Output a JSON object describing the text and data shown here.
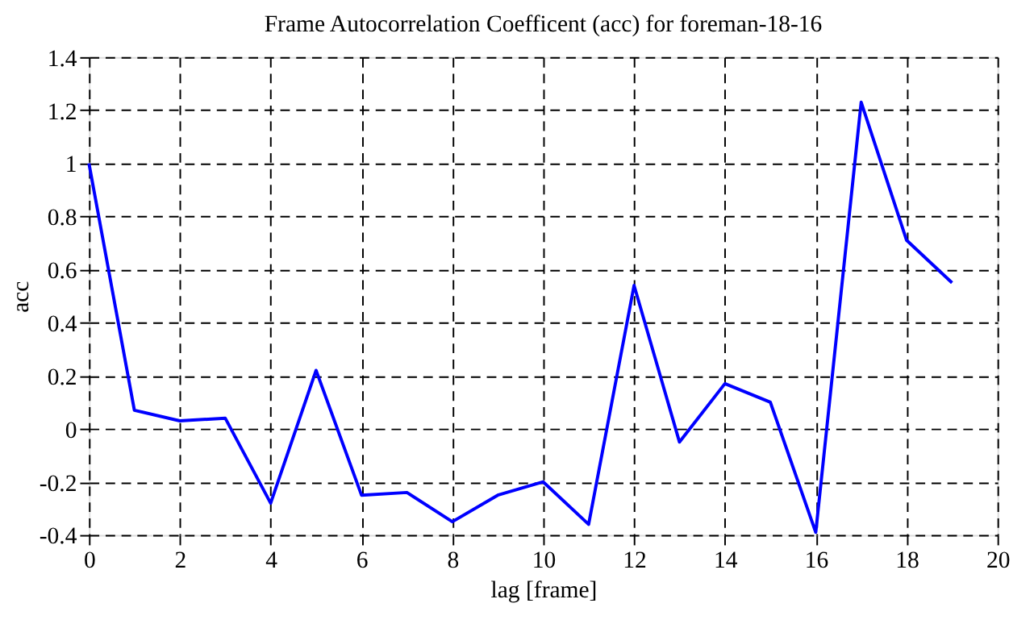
{
  "chart_data": {
    "type": "line",
    "title": "Frame Autocorrelation Coefficent (acc) for foreman-18-16",
    "xlabel": "lag [frame]",
    "ylabel": "acc",
    "x": [
      0,
      1,
      2,
      3,
      4,
      5,
      6,
      7,
      8,
      9,
      10,
      11,
      12,
      13,
      14,
      15,
      16,
      17,
      18,
      19
    ],
    "series": [
      {
        "color": "#0000ff",
        "values": [
          1.0,
          0.07,
          0.03,
          0.04,
          -0.28,
          0.22,
          -0.25,
          -0.24,
          -0.35,
          -0.25,
          -0.2,
          -0.36,
          0.54,
          -0.05,
          0.17,
          0.1,
          -0.39,
          1.23,
          0.71,
          0.55
        ]
      }
    ],
    "xlim": [
      0,
      20
    ],
    "xticks": [
      0,
      2,
      4,
      6,
      8,
      10,
      12,
      14,
      16,
      18,
      20
    ],
    "ylim": [
      -0.4,
      1.4
    ],
    "yticks": [
      -0.4,
      -0.2,
      0,
      0.2,
      0.4,
      0.6,
      0.8,
      1,
      1.2,
      1.4
    ],
    "grid": true,
    "line_style": "solid",
    "marker": "none",
    "legend": false
  }
}
